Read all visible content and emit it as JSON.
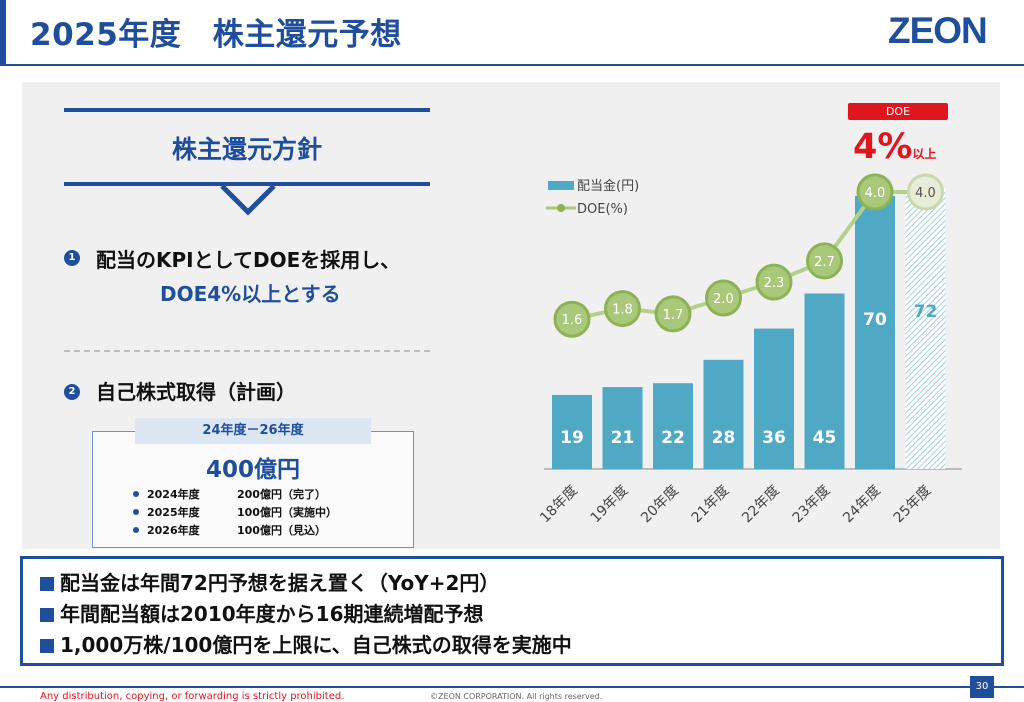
{
  "header": {
    "title": "2025年度　株主還元予想",
    "logo": "ZEON"
  },
  "policy": {
    "heading": "株主還元方針",
    "point1": {
      "num": "1",
      "line1": "配当のKPIとしてDOEを採用し、",
      "line2": "DOE4%以上とする"
    },
    "point2": {
      "num": "2",
      "text": "自己株式取得（計画）"
    },
    "buyback": {
      "period": "24年度－26年度",
      "total": "400億円",
      "items": [
        {
          "year": "2024年度",
          "amount": "200億円（完了）"
        },
        {
          "year": "2025年度",
          "amount": "100億円（実施中）"
        },
        {
          "year": "2026年度",
          "amount": "100億円（見込）"
        }
      ]
    }
  },
  "doe_callout": {
    "badge": "DOE",
    "value": "4%",
    "suffix": "以上"
  },
  "chart_data": {
    "type": "bar",
    "categories": [
      "18年度",
      "19年度",
      "20年度",
      "21年度",
      "22年度",
      "23年度",
      "24年度",
      "25年度"
    ],
    "series": [
      {
        "name": "配当金(円)",
        "type": "bar",
        "values": [
          19,
          21,
          22,
          28,
          36,
          45,
          70,
          72
        ],
        "color": "#4fa9c4"
      },
      {
        "name": "DOE(%)",
        "type": "line",
        "values": [
          1.6,
          1.8,
          1.7,
          2.0,
          2.3,
          2.7,
          4.0,
          4.0
        ],
        "color": "#8db255"
      }
    ],
    "forecast_category": "25年度"
  },
  "bottom": {
    "lines": [
      "配当金は年間72円予想を据え置く（YoY+2円）",
      "年間配当額は2010年度から16期連続増配予想",
      "1,000万株/100億円を上限に、自己株式の取得を実施中"
    ]
  },
  "footer": {
    "warning": "Any distribution, copying, or forwarding is strictly prohibited.",
    "copyright": "©ZEON CORPORATION. All rights reserved.",
    "page": "30"
  }
}
